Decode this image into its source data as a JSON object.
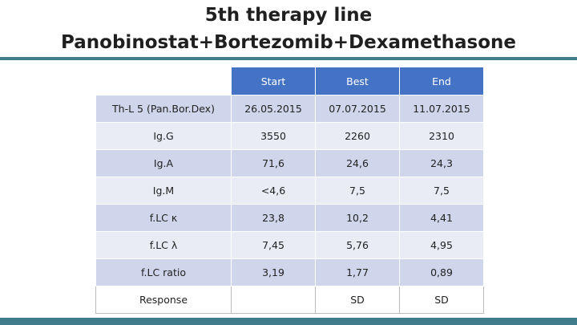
{
  "header": {
    "title_line1": "5th therapy line",
    "title_line2": "Panobinostat+Bortezomib+Dexamethasone"
  },
  "table": {
    "columns": [
      "Start",
      "Best",
      "End"
    ],
    "rows": [
      [
        "Th-L 5 (Pan.Bor.Dex)",
        "26.05.2015",
        "07.07.2015",
        "11.07.2015"
      ],
      [
        "Ig.G",
        "3550",
        "2260",
        "2310"
      ],
      [
        "Ig.A",
        "71,6",
        "24,6",
        "24,3"
      ],
      [
        "Ig.M",
        "<4,6",
        "7,5",
        "7,5"
      ],
      [
        "f.LC κ",
        "23,8",
        "10,2",
        "4,41"
      ],
      [
        "f.LC λ",
        "7,45",
        "5,76",
        "4,95"
      ],
      [
        "f.LC ratio",
        "3,19",
        "1,77",
        "0,89"
      ],
      [
        "Response",
        null,
        "SD",
        "SD"
      ]
    ]
  }
}
